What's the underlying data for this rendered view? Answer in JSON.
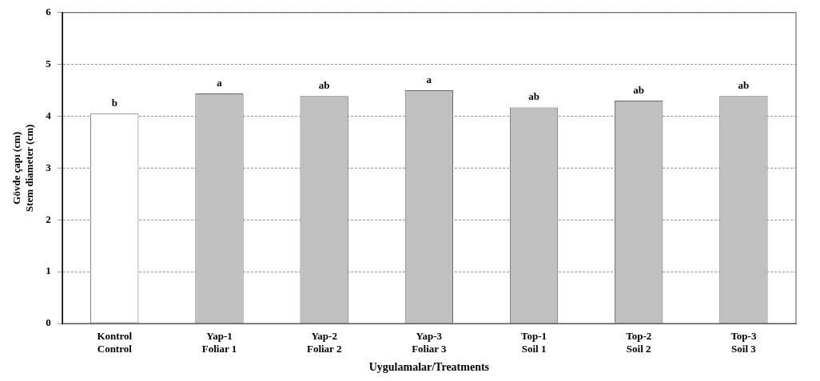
{
  "chart_data": {
    "type": "bar",
    "categories": [
      "Kontrol\nControl",
      "Yap-1\nFoliar 1",
      "Yap-2\nFoliar 2",
      "Yap-3\nFoliar 3",
      "Top-1\nSoil 1",
      "Top-2\nSoil 2",
      "Top-3\nSoil 3"
    ],
    "values": [
      4.05,
      4.44,
      4.39,
      4.5,
      4.17,
      4.3,
      4.39
    ],
    "colors": [
      "#ffffff",
      "#c0c0c0",
      "#c0c0c0",
      "#c0c0c0",
      "#c0c0c0",
      "#c0c0c0",
      "#c0c0c0"
    ],
    "value_labels": [
      "b",
      "a",
      "ab",
      "a",
      "ab",
      "ab",
      "ab"
    ],
    "xlabel": "Uygulamalar/Treatments",
    "ylabel": "Gövde çapı (cm)\nStem diameter (cm)",
    "ylim": [
      0,
      6
    ],
    "yticks": [
      0,
      1,
      2,
      3,
      4,
      5,
      6
    ],
    "grid": "y",
    "legend": false
  }
}
